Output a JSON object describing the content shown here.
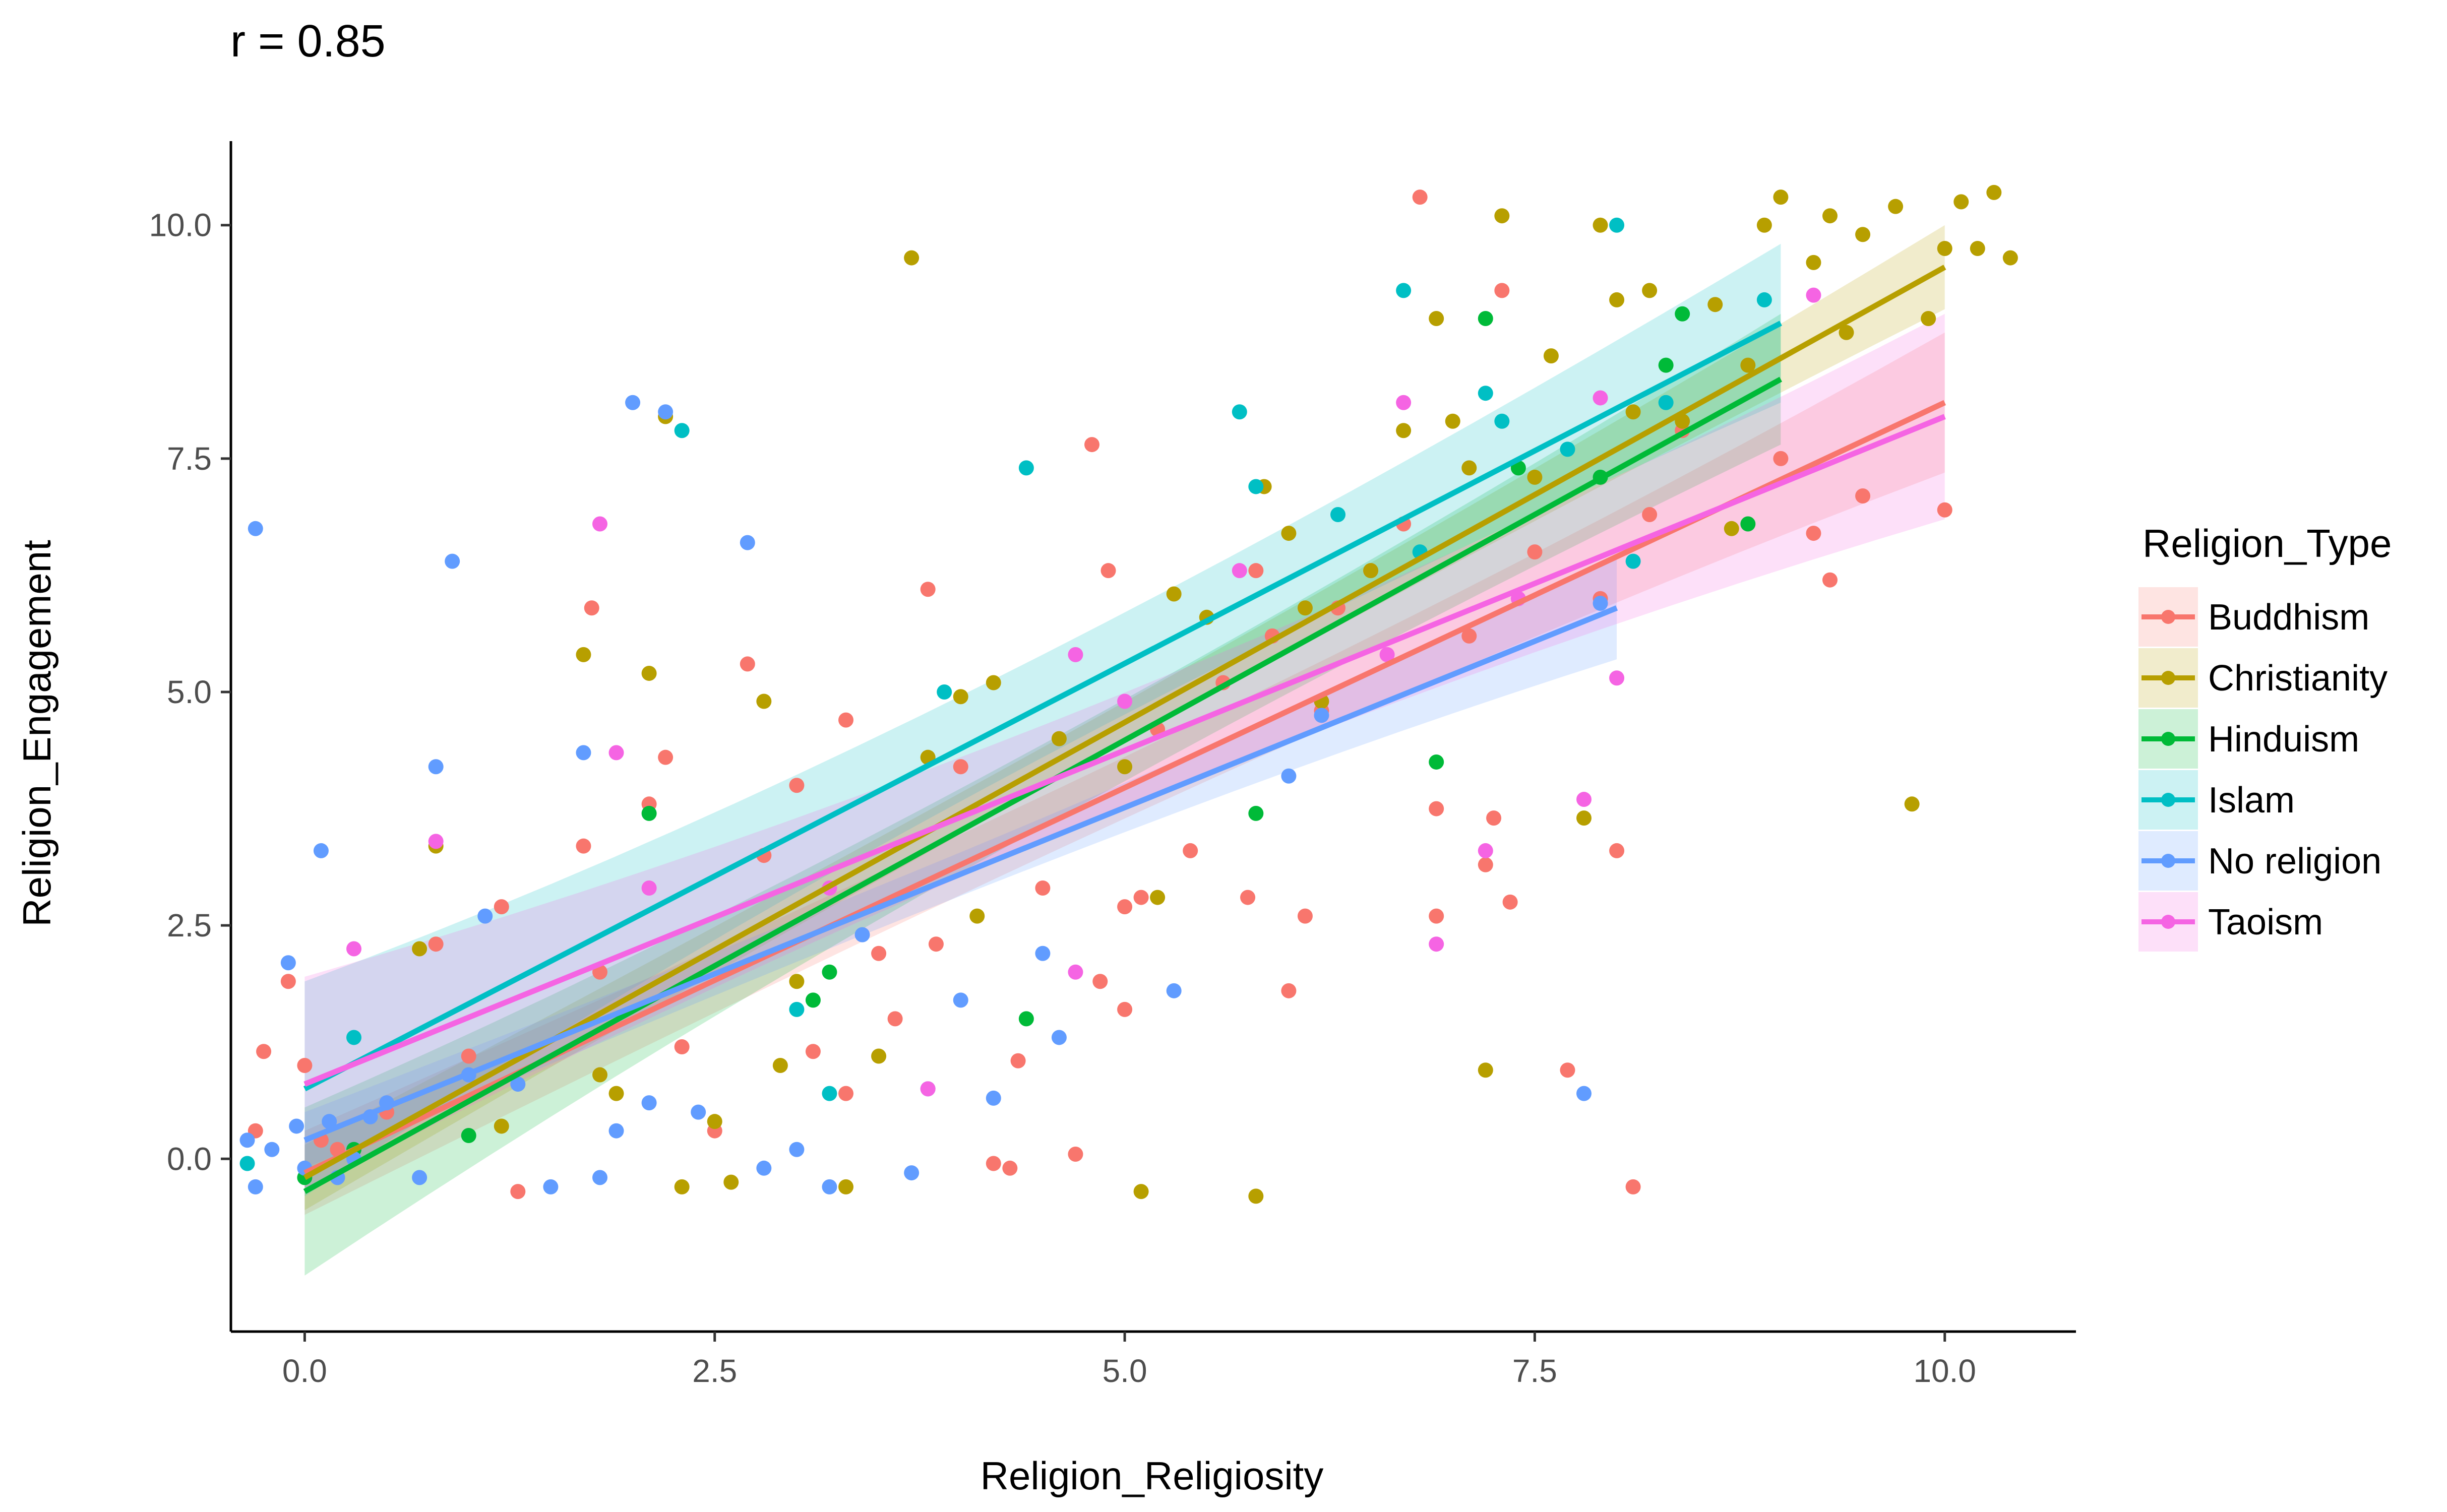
{
  "chart_data": {
    "type": "scatter",
    "title": "r = 0.85",
    "xlabel": "Religion_Religiosity",
    "ylabel": "Religion_Engagement",
    "xlim": [
      -0.45,
      10.8
    ],
    "ylim": [
      -1.85,
      10.9
    ],
    "x_ticks": [
      0.0,
      2.5,
      5.0,
      7.5,
      10.0
    ],
    "y_ticks": [
      0.0,
      2.5,
      5.0,
      7.5,
      10.0
    ],
    "x_tick_labels": [
      "0.0",
      "2.5",
      "5.0",
      "7.5",
      "10.0"
    ],
    "y_tick_labels": [
      "0.0",
      "2.5",
      "5.0",
      "7.5",
      "10.0"
    ],
    "grid": false,
    "legend_title": "Religion_Type",
    "legend_position": "right",
    "series": [
      {
        "name": "Buddhism",
        "color": "#F8766D",
        "fit": {
          "x": [
            0,
            10
          ],
          "y": [
            -0.15,
            8.1
          ],
          "band_halfwidth": [
            0.45,
            0.75
          ]
        },
        "points": [
          [
            -0.3,
            0.3
          ],
          [
            -0.25,
            1.15
          ],
          [
            -0.1,
            1.9
          ],
          [
            0.0,
            1.0
          ],
          [
            0.1,
            0.2
          ],
          [
            0.2,
            0.1
          ],
          [
            0.5,
            0.5
          ],
          [
            0.8,
            2.3
          ],
          [
            1.0,
            1.1
          ],
          [
            1.2,
            2.7
          ],
          [
            1.3,
            -0.35
          ],
          [
            1.7,
            3.35
          ],
          [
            1.75,
            5.9
          ],
          [
            1.8,
            2.0
          ],
          [
            2.1,
            3.8
          ],
          [
            2.2,
            4.3
          ],
          [
            2.3,
            1.2
          ],
          [
            2.5,
            0.3
          ],
          [
            2.7,
            5.3
          ],
          [
            2.8,
            3.25
          ],
          [
            3.0,
            4.0
          ],
          [
            3.1,
            1.15
          ],
          [
            3.3,
            4.7
          ],
          [
            3.3,
            0.7
          ],
          [
            3.5,
            2.2
          ],
          [
            3.6,
            1.5
          ],
          [
            3.8,
            6.1
          ],
          [
            3.85,
            2.3
          ],
          [
            4.0,
            4.2
          ],
          [
            4.2,
            -0.05
          ],
          [
            4.3,
            -0.1
          ],
          [
            4.35,
            1.05
          ],
          [
            4.5,
            2.9
          ],
          [
            4.7,
            0.05
          ],
          [
            4.8,
            7.65
          ],
          [
            4.85,
            1.9
          ],
          [
            4.9,
            6.3
          ],
          [
            5.0,
            2.7
          ],
          [
            5.0,
            1.6
          ],
          [
            5.1,
            2.8
          ],
          [
            5.2,
            4.6
          ],
          [
            5.4,
            3.3
          ],
          [
            5.6,
            5.1
          ],
          [
            5.75,
            2.8
          ],
          [
            5.8,
            6.3
          ],
          [
            5.9,
            5.6
          ],
          [
            6.0,
            1.8
          ],
          [
            6.1,
            2.6
          ],
          [
            6.2,
            4.8
          ],
          [
            6.3,
            5.9
          ],
          [
            6.5,
            6.3
          ],
          [
            6.7,
            6.8
          ],
          [
            6.8,
            10.3
          ],
          [
            6.9,
            3.75
          ],
          [
            6.9,
            2.6
          ],
          [
            7.1,
            5.6
          ],
          [
            7.2,
            3.15
          ],
          [
            7.25,
            3.65
          ],
          [
            7.3,
            9.3
          ],
          [
            7.35,
            2.75
          ],
          [
            7.5,
            6.5
          ],
          [
            7.7,
            0.95
          ],
          [
            7.9,
            6.0
          ],
          [
            8.0,
            3.3
          ],
          [
            8.1,
            -0.3
          ],
          [
            8.2,
            6.9
          ],
          [
            8.4,
            7.8
          ],
          [
            9.0,
            7.5
          ],
          [
            9.2,
            6.7
          ],
          [
            9.3,
            6.2
          ],
          [
            9.5,
            7.1
          ],
          [
            10.0,
            6.95
          ]
        ]
      },
      {
        "name": "Christianity",
        "color": "#B79F00",
        "fit": {
          "x": [
            0,
            10
          ],
          "y": [
            -0.2,
            9.55
          ],
          "band_halfwidth": [
            0.35,
            0.45
          ]
        },
        "points": [
          [
            0.7,
            2.25
          ],
          [
            0.8,
            3.35
          ],
          [
            1.2,
            0.35
          ],
          [
            1.7,
            5.4
          ],
          [
            1.8,
            0.9
          ],
          [
            1.9,
            0.7
          ],
          [
            2.1,
            5.2
          ],
          [
            2.2,
            7.95
          ],
          [
            2.3,
            -0.3
          ],
          [
            2.5,
            0.4
          ],
          [
            2.6,
            -0.25
          ],
          [
            2.8,
            4.9
          ],
          [
            2.9,
            1.0
          ],
          [
            3.0,
            1.9
          ],
          [
            3.3,
            -0.3
          ],
          [
            3.5,
            1.1
          ],
          [
            3.7,
            9.65
          ],
          [
            3.8,
            4.3
          ],
          [
            4.0,
            4.95
          ],
          [
            4.1,
            2.6
          ],
          [
            4.2,
            5.1
          ],
          [
            4.6,
            4.5
          ],
          [
            5.0,
            4.2
          ],
          [
            5.1,
            -0.35
          ],
          [
            5.2,
            2.8
          ],
          [
            5.3,
            6.05
          ],
          [
            5.5,
            5.8
          ],
          [
            5.8,
            -0.4
          ],
          [
            5.85,
            7.2
          ],
          [
            6.0,
            6.7
          ],
          [
            6.1,
            5.9
          ],
          [
            6.2,
            4.9
          ],
          [
            6.5,
            6.3
          ],
          [
            6.7,
            7.8
          ],
          [
            6.9,
            9.0
          ],
          [
            7.0,
            7.9
          ],
          [
            7.1,
            7.4
          ],
          [
            7.2,
            0.95
          ],
          [
            7.3,
            10.1
          ],
          [
            7.5,
            7.3
          ],
          [
            7.6,
            8.6
          ],
          [
            7.8,
            3.65
          ],
          [
            7.9,
            10.0
          ],
          [
            8.0,
            9.2
          ],
          [
            8.1,
            8.0
          ],
          [
            8.2,
            9.3
          ],
          [
            8.4,
            7.9
          ],
          [
            8.6,
            9.15
          ],
          [
            8.7,
            6.75
          ],
          [
            8.8,
            8.5
          ],
          [
            8.9,
            10.0
          ],
          [
            9.0,
            10.3
          ],
          [
            9.2,
            9.6
          ],
          [
            9.3,
            10.1
          ],
          [
            9.4,
            8.85
          ],
          [
            9.5,
            9.9
          ],
          [
            9.7,
            10.2
          ],
          [
            9.8,
            3.8
          ],
          [
            9.9,
            9.0
          ],
          [
            10.0,
            9.75
          ],
          [
            10.1,
            10.25
          ],
          [
            10.2,
            9.75
          ],
          [
            10.3,
            10.35
          ],
          [
            10.4,
            9.65
          ]
        ]
      },
      {
        "name": "Hinduism",
        "color": "#00BA38",
        "fit": {
          "x": [
            0,
            9
          ],
          "y": [
            -0.35,
            8.35
          ],
          "band_halfwidth": [
            0.9,
            0.7
          ]
        },
        "points": [
          [
            0.0,
            -0.2
          ],
          [
            0.3,
            0.1
          ],
          [
            1.0,
            0.25
          ],
          [
            2.1,
            3.7
          ],
          [
            3.1,
            1.7
          ],
          [
            3.2,
            2.0
          ],
          [
            4.4,
            1.5
          ],
          [
            5.8,
            3.7
          ],
          [
            6.9,
            4.25
          ],
          [
            7.2,
            9.0
          ],
          [
            7.4,
            7.4
          ],
          [
            7.9,
            7.3
          ],
          [
            8.3,
            8.5
          ],
          [
            8.4,
            9.05
          ],
          [
            8.8,
            6.8
          ]
        ]
      },
      {
        "name": "Islam",
        "color": "#00BFC4",
        "fit": {
          "x": [
            0,
            9
          ],
          "y": [
            0.75,
            8.95
          ],
          "band_halfwidth": [
            1.15,
            0.85
          ]
        },
        "points": [
          [
            -0.35,
            -0.05
          ],
          [
            0.3,
            1.3
          ],
          [
            2.3,
            7.8
          ],
          [
            3.0,
            1.6
          ],
          [
            3.2,
            0.7
          ],
          [
            3.9,
            5.0
          ],
          [
            4.4,
            7.4
          ],
          [
            5.7,
            8.0
          ],
          [
            5.8,
            7.2
          ],
          [
            6.3,
            6.9
          ],
          [
            6.7,
            9.3
          ],
          [
            6.8,
            6.5
          ],
          [
            7.2,
            8.2
          ],
          [
            7.3,
            7.9
          ],
          [
            7.7,
            7.6
          ],
          [
            8.0,
            10.0
          ],
          [
            8.1,
            6.4
          ],
          [
            8.3,
            8.1
          ],
          [
            8.9,
            9.2
          ]
        ]
      },
      {
        "name": "No religion",
        "color": "#619CFF",
        "fit": {
          "x": [
            0,
            8
          ],
          "y": [
            0.2,
            5.9
          ],
          "band_halfwidth": [
            0.3,
            0.55
          ]
        },
        "points": [
          [
            -0.3,
            6.75
          ],
          [
            -0.35,
            0.2
          ],
          [
            -0.3,
            -0.3
          ],
          [
            -0.2,
            0.1
          ],
          [
            -0.1,
            2.1
          ],
          [
            -0.05,
            0.35
          ],
          [
            0.0,
            -0.1
          ],
          [
            0.1,
            3.3
          ],
          [
            0.15,
            0.4
          ],
          [
            0.2,
            -0.2
          ],
          [
            0.3,
            0.0
          ],
          [
            0.4,
            0.45
          ],
          [
            0.5,
            0.6
          ],
          [
            0.7,
            -0.2
          ],
          [
            0.8,
            4.2
          ],
          [
            0.9,
            6.4
          ],
          [
            1.0,
            0.9
          ],
          [
            1.1,
            2.6
          ],
          [
            1.3,
            0.8
          ],
          [
            1.5,
            -0.3
          ],
          [
            1.7,
            4.35
          ],
          [
            1.8,
            -0.2
          ],
          [
            1.9,
            0.3
          ],
          [
            2.0,
            8.1
          ],
          [
            2.1,
            0.6
          ],
          [
            2.2,
            8.0
          ],
          [
            2.4,
            0.5
          ],
          [
            2.7,
            6.6
          ],
          [
            2.8,
            -0.1
          ],
          [
            3.0,
            0.1
          ],
          [
            3.2,
            -0.3
          ],
          [
            3.4,
            2.4
          ],
          [
            3.7,
            -0.15
          ],
          [
            3.8,
            0.75
          ],
          [
            4.0,
            1.7
          ],
          [
            4.2,
            0.65
          ],
          [
            4.5,
            2.2
          ],
          [
            4.6,
            1.3
          ],
          [
            5.3,
            1.8
          ],
          [
            6.0,
            4.1
          ],
          [
            6.2,
            4.75
          ],
          [
            7.8,
            0.7
          ],
          [
            7.9,
            5.95
          ]
        ]
      },
      {
        "name": "Taoism",
        "color": "#F564E3",
        "fit": {
          "x": [
            0,
            10
          ],
          "y": [
            0.8,
            7.95
          ],
          "band_halfwidth": [
            1.15,
            1.1
          ]
        },
        "points": [
          [
            0.3,
            2.25
          ],
          [
            0.8,
            3.4
          ],
          [
            1.8,
            6.8
          ],
          [
            1.9,
            4.35
          ],
          [
            2.1,
            2.9
          ],
          [
            3.2,
            2.9
          ],
          [
            3.8,
            0.75
          ],
          [
            4.7,
            5.4
          ],
          [
            4.7,
            2.0
          ],
          [
            5.0,
            4.9
          ],
          [
            5.7,
            6.3
          ],
          [
            6.6,
            5.4
          ],
          [
            6.7,
            8.1
          ],
          [
            6.9,
            2.3
          ],
          [
            7.2,
            3.3
          ],
          [
            7.4,
            6.0
          ],
          [
            7.8,
            3.85
          ],
          [
            7.9,
            8.15
          ],
          [
            8.0,
            5.15
          ],
          [
            9.2,
            9.25
          ]
        ]
      }
    ]
  }
}
